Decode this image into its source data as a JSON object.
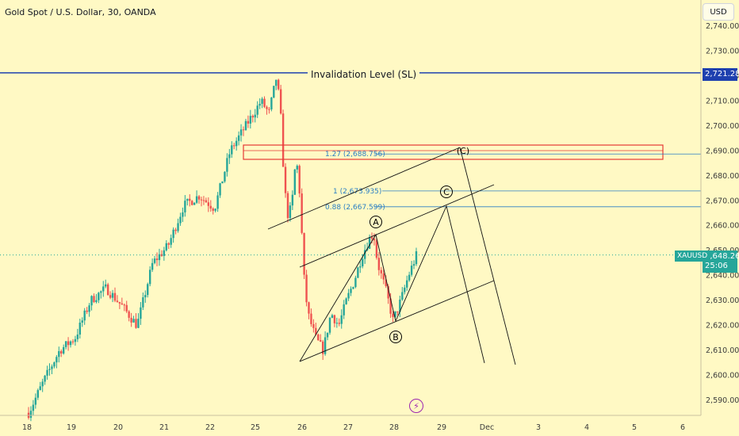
{
  "header": {
    "title": "Gold Spot / U.S. Dollar, 30, OANDA",
    "currency": "USD"
  },
  "price_tags": {
    "invalidation_price": "2,721.285",
    "current_price": "2,648.265",
    "countdown": "25:06",
    "symbol": "XAUUSD"
  },
  "colors": {
    "background": "#fff9c4",
    "up_candle": "#26a69a",
    "down_candle": "#ef5350",
    "invalidation_line": "#1e40af",
    "fib_line": "#2a7fc4",
    "target_box": "#e53935"
  },
  "chart_data": {
    "type": "candlestick",
    "title": "Gold Spot / U.S. Dollar, 30, OANDA",
    "ylim": [
      2582,
      2745
    ],
    "y_ticks": [
      2590,
      2600,
      2610,
      2620,
      2630,
      2640,
      2650,
      2660,
      2670,
      2680,
      2690,
      2700,
      2710,
      2720,
      2730,
      2740
    ],
    "y_tick_labels": [
      "2,590.000",
      "2,600.000",
      "2,610.000",
      "2,620.000",
      "2,630.000",
      "2,640.000",
      "2,650.000",
      "2,660.000",
      "2,670.000",
      "2,680.000",
      "2,690.000",
      "2,700.000",
      "2,710.000",
      "2,720.000",
      "2,730.000",
      "2,740.000"
    ],
    "x_ticks": [
      "18",
      "19",
      "20",
      "21",
      "22",
      "25",
      "26",
      "27",
      "28",
      "29",
      "Dec",
      "3",
      "4",
      "5",
      "6"
    ],
    "price_path": [
      [
        0,
        2585
      ],
      [
        4,
        2598
      ],
      [
        8,
        2610
      ],
      [
        12,
        2615
      ],
      [
        16,
        2630
      ],
      [
        20,
        2635
      ],
      [
        24,
        2628
      ],
      [
        28,
        2620
      ],
      [
        32,
        2645
      ],
      [
        36,
        2652
      ],
      [
        40,
        2668
      ],
      [
        44,
        2672
      ],
      [
        48,
        2667
      ],
      [
        52,
        2690
      ],
      [
        56,
        2700
      ],
      [
        60,
        2710
      ],
      [
        62,
        2705
      ],
      [
        64,
        2720
      ],
      [
        65,
        2705
      ],
      [
        66,
        2675
      ],
      [
        67,
        2663
      ],
      [
        68,
        2670
      ],
      [
        69,
        2688
      ],
      [
        70,
        2672
      ],
      [
        71,
        2640
      ],
      [
        72,
        2625
      ],
      [
        74,
        2615
      ],
      [
        76,
        2610
      ],
      [
        78,
        2625
      ],
      [
        80,
        2620
      ],
      [
        82,
        2630
      ],
      [
        84,
        2638
      ],
      [
        86,
        2648
      ],
      [
        88,
        2655
      ],
      [
        89,
        2657
      ],
      [
        90,
        2645
      ],
      [
        92,
        2635
      ],
      [
        94,
        2622
      ],
      [
        96,
        2630
      ],
      [
        98,
        2640
      ],
      [
        100,
        2648
      ]
    ],
    "annotations": {
      "invalidation_label": "Invalidation Level (SL)",
      "invalidation_value": 2721.285,
      "fib_levels": [
        {
          "label": "1.27 (2,688.756)",
          "value": 2688.756
        },
        {
          "label": "1 (2,673.935)",
          "value": 2673.935
        },
        {
          "label": "0.88 (2,667.599)",
          "value": 2667.599
        }
      ],
      "waves": [
        "A",
        "B",
        "C",
        "(C)"
      ]
    }
  }
}
